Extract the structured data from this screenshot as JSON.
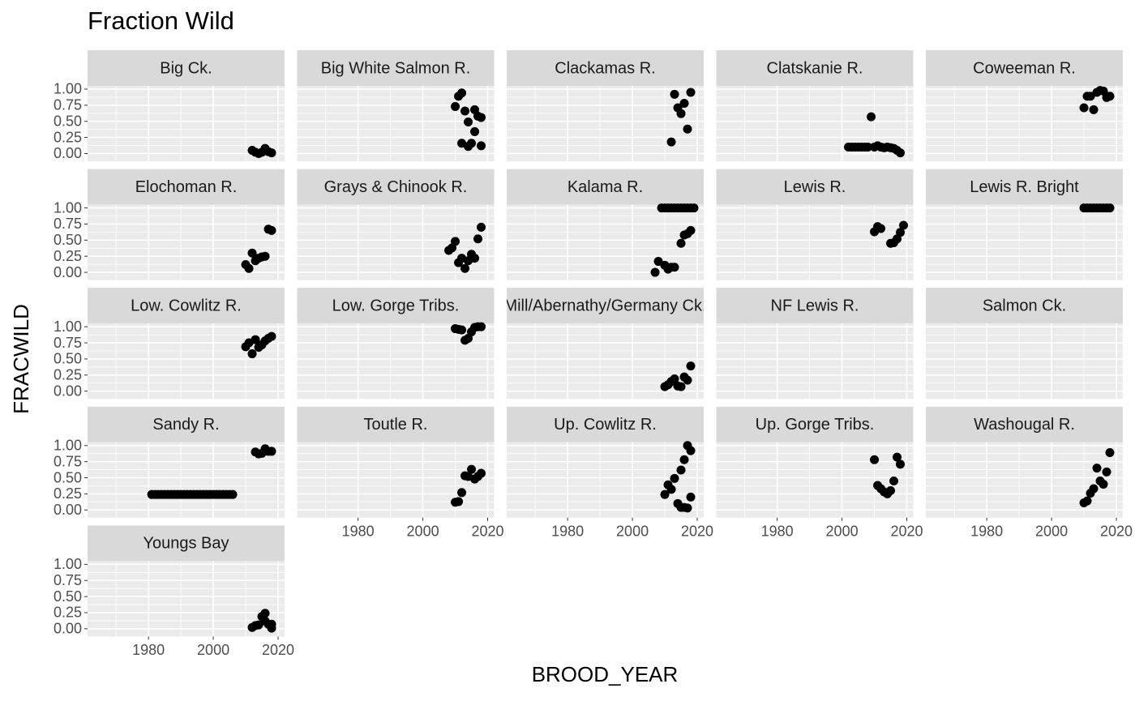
{
  "chart_data": {
    "type": "scatter",
    "title": "Fraction Wild",
    "x_label": "BROOD_YEAR",
    "y_label": "FRACWILD",
    "xlim": [
      1961.2,
      2022
    ],
    "ylim": [
      -0.12,
      1.05
    ],
    "xticks": [
      1980,
      2000,
      2020
    ],
    "xminor": [
      1970,
      1990,
      2010
    ],
    "yticks": [
      {
        "value": 0,
        "label": "0.00"
      },
      {
        "value": 0.25,
        "label": "0.25"
      },
      {
        "value": 0.5,
        "label": "0.50"
      },
      {
        "value": 0.75,
        "label": "0.75"
      },
      {
        "value": 1,
        "label": "1.00"
      }
    ],
    "yminor": [
      0.125,
      0.375,
      0.625,
      0.875
    ],
    "grid": true,
    "color": "#000000",
    "panels": [
      {
        "name": "Big Ck.",
        "x": [
          2012,
          2013,
          2014,
          2015,
          2016,
          2017,
          2018
        ],
        "y": [
          0.05,
          0.02,
          0.0,
          0.02,
          0.08,
          0.03,
          0.01
        ]
      },
      {
        "name": "Big White Salmon R.",
        "x": [
          2010,
          2011,
          2012,
          2012,
          2013,
          2014,
          2014,
          2015,
          2016,
          2016,
          2017,
          2018,
          2018
        ],
        "y": [
          0.73,
          0.89,
          0.94,
          0.16,
          0.66,
          0.11,
          0.49,
          0.16,
          0.68,
          0.34,
          0.58,
          0.56,
          0.12
        ]
      },
      {
        "name": "Clackamas R.",
        "x": [
          2012,
          2013,
          2014,
          2015,
          2016,
          2017,
          2018
        ],
        "y": [
          0.18,
          0.92,
          0.71,
          0.62,
          0.78,
          0.38,
          0.95
        ]
      },
      {
        "name": "Clatskanie R.",
        "x": [
          2002,
          2003,
          2004,
          2005,
          2006,
          2007,
          2008,
          2009,
          2010,
          2011,
          2012,
          2013,
          2014,
          2015,
          2016,
          2017,
          2018
        ],
        "y": [
          0.1,
          0.1,
          0.1,
          0.1,
          0.1,
          0.1,
          0.1,
          0.57,
          0.1,
          0.12,
          0.1,
          0.09,
          0.1,
          0.09,
          0.08,
          0.05,
          0.01
        ]
      },
      {
        "name": "Coweeman R.",
        "x": [
          2010,
          2011,
          2012,
          2013,
          2014,
          2015,
          2016,
          2017,
          2018
        ],
        "y": [
          0.71,
          0.89,
          0.89,
          0.68,
          0.95,
          0.98,
          0.97,
          0.87,
          0.89
        ]
      },
      {
        "name": "Elochoman R.",
        "x": [
          2010,
          2011,
          2012,
          2013,
          2014,
          2015,
          2016,
          2017,
          2018
        ],
        "y": [
          0.12,
          0.06,
          0.3,
          0.18,
          0.22,
          0.24,
          0.25,
          0.67,
          0.65
        ]
      },
      {
        "name": "Grays & Chinook R.",
        "x": [
          2008,
          2009,
          2010,
          2011,
          2012,
          2013,
          2014,
          2015,
          2016,
          2017,
          2018
        ],
        "y": [
          0.34,
          0.38,
          0.48,
          0.15,
          0.22,
          0.06,
          0.18,
          0.28,
          0.22,
          0.52,
          0.7
        ]
      },
      {
        "name": "Kalama R.",
        "x": [
          2007,
          2008,
          2010,
          2011,
          2012,
          2013,
          2015,
          2016,
          2017,
          2018,
          2009,
          2010,
          2011,
          2012,
          2013,
          2014,
          2015,
          2016,
          2017,
          2018,
          2019
        ],
        "y": [
          0.0,
          0.17,
          0.11,
          0.05,
          0.08,
          0.08,
          0.45,
          0.58,
          0.6,
          0.65,
          1,
          1,
          1,
          1,
          1,
          1,
          1,
          1,
          1,
          1,
          1
        ]
      },
      {
        "name": "Lewis R.",
        "x": [
          2010,
          2011,
          2012,
          2015,
          2016,
          2017,
          2018,
          2019
        ],
        "y": [
          0.63,
          0.71,
          0.68,
          0.45,
          0.46,
          0.52,
          0.62,
          0.73
        ]
      },
      {
        "name": "Lewis R. Bright",
        "x": [
          2010,
          2011,
          2012,
          2013,
          2014,
          2015,
          2016,
          2017,
          2018
        ],
        "y": [
          1,
          1,
          1,
          1,
          1,
          1,
          1,
          1,
          1
        ]
      },
      {
        "name": "Low. Cowlitz R.",
        "x": [
          2010,
          2011,
          2012,
          2013,
          2014,
          2015,
          2016,
          2017,
          2018
        ],
        "y": [
          0.69,
          0.75,
          0.58,
          0.8,
          0.68,
          0.72,
          0.78,
          0.82,
          0.85
        ]
      },
      {
        "name": "Low. Gorge Tribs.",
        "x": [
          2010,
          2011,
          2012,
          2013,
          2014,
          2015,
          2016,
          2017,
          2018
        ],
        "y": [
          0.97,
          0.96,
          0.95,
          0.79,
          0.82,
          0.92,
          0.99,
          1.0,
          1.0
        ]
      },
      {
        "name": "Mill/Abernathy/Germany Ck.",
        "x": [
          2010,
          2011,
          2012,
          2013,
          2014,
          2015,
          2016,
          2017,
          2018
        ],
        "y": [
          0.07,
          0.1,
          0.15,
          0.19,
          0.08,
          0.07,
          0.22,
          0.17,
          0.39
        ]
      },
      {
        "name": "NF Lewis R.",
        "x": [],
        "y": []
      },
      {
        "name": "Salmon Ck.",
        "x": [],
        "y": []
      },
      {
        "name": "Sandy R.",
        "x": [
          1981,
          1982,
          1983,
          1984,
          1985,
          1986,
          1987,
          1988,
          1989,
          1990,
          1991,
          1992,
          1993,
          1994,
          1995,
          1996,
          1997,
          1998,
          1999,
          2000,
          2001,
          2002,
          2003,
          2004,
          2005,
          2006,
          2013,
          2014,
          2015,
          2016,
          2017,
          2018
        ],
        "y": [
          0.24,
          0.24,
          0.24,
          0.24,
          0.24,
          0.24,
          0.24,
          0.24,
          0.24,
          0.24,
          0.24,
          0.24,
          0.24,
          0.24,
          0.24,
          0.24,
          0.24,
          0.24,
          0.24,
          0.24,
          0.24,
          0.24,
          0.24,
          0.24,
          0.24,
          0.24,
          0.9,
          0.87,
          0.88,
          0.95,
          0.91,
          0.91
        ]
      },
      {
        "name": "Toutle R.",
        "x": [
          2010,
          2011,
          2012,
          2013,
          2014,
          2015,
          2016,
          2017,
          2018
        ],
        "y": [
          0.12,
          0.13,
          0.27,
          0.53,
          0.52,
          0.63,
          0.48,
          0.52,
          0.57
        ]
      },
      {
        "name": "Up. Cowlitz R.",
        "x": [
          2010,
          2011,
          2012,
          2013,
          2014,
          2015,
          2015,
          2016,
          2016,
          2017,
          2017,
          2018,
          2018
        ],
        "y": [
          0.24,
          0.39,
          0.32,
          0.49,
          0.1,
          0.62,
          0.04,
          0.78,
          0.04,
          1.0,
          0.03,
          0.92,
          0.2
        ]
      },
      {
        "name": "Up. Gorge Tribs.",
        "x": [
          2010,
          2011,
          2012,
          2013,
          2014,
          2015,
          2016,
          2017,
          2018
        ],
        "y": [
          0.78,
          0.38,
          0.33,
          0.28,
          0.25,
          0.3,
          0.45,
          0.82,
          0.71
        ]
      },
      {
        "name": "Washougal R.",
        "x": [
          2010,
          2011,
          2012,
          2013,
          2014,
          2015,
          2016,
          2017,
          2018
        ],
        "y": [
          0.11,
          0.14,
          0.26,
          0.33,
          0.65,
          0.45,
          0.4,
          0.59,
          0.89
        ]
      },
      {
        "name": "Youngs Bay",
        "x": [
          2012,
          2013,
          2014,
          2015,
          2016,
          2016,
          2017,
          2018,
          2018
        ],
        "y": [
          0.02,
          0.05,
          0.06,
          0.19,
          0.24,
          0.12,
          0.07,
          0.07,
          0.01
        ]
      }
    ]
  }
}
